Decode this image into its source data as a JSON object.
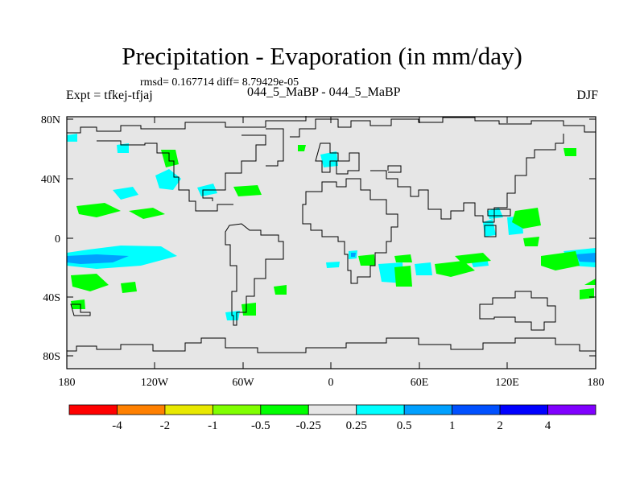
{
  "title": "Precipitation - Evaporation (in mm/day)",
  "stats": "rmsd= 0.167714  diff= 8.79429e-05",
  "expt": "Expt = tfkej-tfjaj",
  "cases": "044_5_MaBP - 044_5_MaBP",
  "season": "DJF",
  "lat_ticks": [
    "80N",
    "40N",
    "0",
    "40S",
    "80S"
  ],
  "lon_ticks": [
    "180",
    "120W",
    "60W",
    "0",
    "60E",
    "120E",
    "180"
  ],
  "colorbar": {
    "colors": [
      "#ff0000",
      "#ff8000",
      "#e8e800",
      "#80ff00",
      "#00ff00",
      "#e6e6e6",
      "#00ffff",
      "#00a0ff",
      "#0050ff",
      "#0000ff",
      "#8000ff"
    ],
    "labels": [
      "-4",
      "-2",
      "-1",
      "-0.5",
      "-0.25",
      "0.25",
      "0.5",
      "1",
      "2",
      "4"
    ]
  },
  "colors": {
    "land_ocean_neutral": "#e6e6e6",
    "coast": "#000000"
  }
}
